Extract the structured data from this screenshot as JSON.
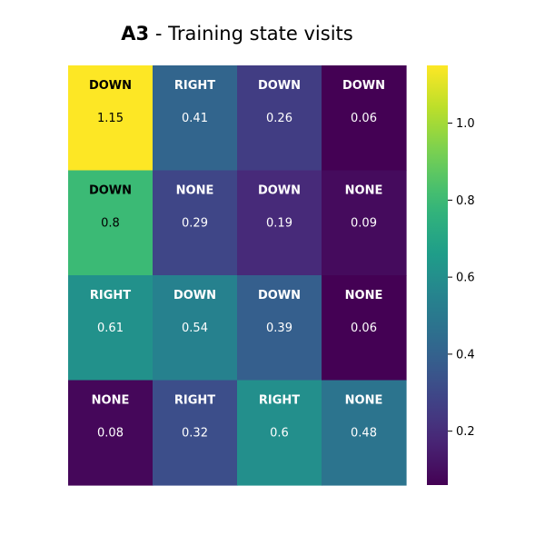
{
  "chart_data": {
    "type": "heatmap",
    "title_bold": "A3",
    "title_rest": " - Training state visits",
    "colormap": "viridis",
    "vmin": 0.06,
    "vmax": 1.15,
    "rows": [
      [
        {
          "action": "DOWN",
          "value": 1.15
        },
        {
          "action": "RIGHT",
          "value": 0.41
        },
        {
          "action": "DOWN",
          "value": 0.26
        },
        {
          "action": "DOWN",
          "value": 0.06
        }
      ],
      [
        {
          "action": "DOWN",
          "value": 0.8
        },
        {
          "action": "NONE",
          "value": 0.29
        },
        {
          "action": "DOWN",
          "value": 0.19
        },
        {
          "action": "NONE",
          "value": 0.09
        }
      ],
      [
        {
          "action": "RIGHT",
          "value": 0.61
        },
        {
          "action": "DOWN",
          "value": 0.54
        },
        {
          "action": "DOWN",
          "value": 0.39
        },
        {
          "action": "NONE",
          "value": 0.06
        }
      ],
      [
        {
          "action": "NONE",
          "value": 0.08
        },
        {
          "action": "RIGHT",
          "value": 0.32
        },
        {
          "action": "RIGHT",
          "value": 0.6
        },
        {
          "action": "NONE",
          "value": 0.48
        }
      ]
    ],
    "colorbar_ticks": [
      "0.2",
      "0.4",
      "0.6",
      "0.8",
      "1.0"
    ]
  }
}
